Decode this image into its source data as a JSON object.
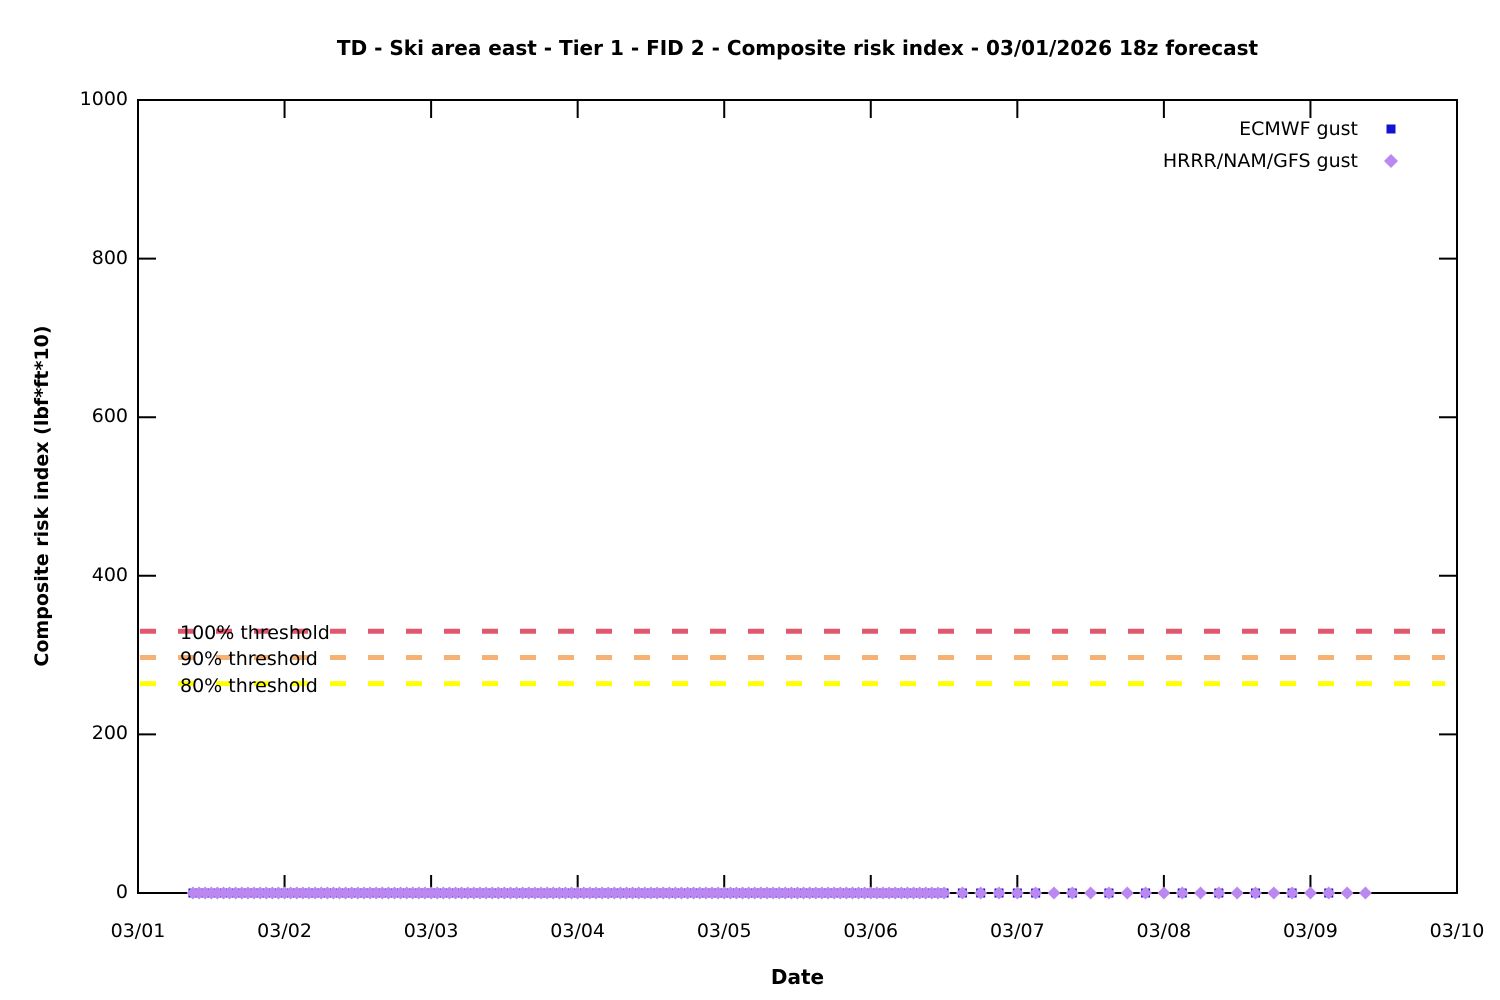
{
  "chart": {
    "title": "TD - Ski area east - Tier 1 - FID 2 - Composite risk index - 03/01/2026 18z forecast",
    "xlabel": "Date",
    "ylabel": "Composite risk index (lbf*ft*10)"
  },
  "chart_data": {
    "type": "scatter",
    "title": "TD - Ski area east - Tier 1 - FID 2 - Composite risk index - 03/01/2026 18z forecast",
    "xlabel": "Date",
    "ylabel": "Composite risk index (lbf*ft*10)",
    "x_tick_labels": [
      "03/01",
      "03/02",
      "03/03",
      "03/04",
      "03/05",
      "03/06",
      "03/07",
      "03/08",
      "03/09",
      "03/10"
    ],
    "x_range_days": [
      0,
      9
    ],
    "ylim": [
      0,
      1000
    ],
    "y_ticks": [
      0,
      200,
      400,
      600,
      800,
      1000
    ],
    "grid": false,
    "legend_position": "top-right-inside",
    "axis_color": "#000000",
    "series": [
      {
        "name": "ECMWF gust",
        "marker": "square",
        "color": "#1212cf",
        "marker_size": 9,
        "note": "all plotted values are approximately 0; hours counted from 03/01 00z",
        "segments": [
          {
            "start_hours": 9,
            "end_hours": 131,
            "step_hours": 1,
            "value": 0
          },
          {
            "start_hours": 132,
            "end_hours": 147,
            "step_hours": 3,
            "value": 0
          },
          {
            "start_hours": 153,
            "end_hours": 195,
            "step_hours": 6,
            "value": 0
          }
        ]
      },
      {
        "name": "HRRR/NAM/GFS gust",
        "marker": "diamond",
        "color": "#bb87f0",
        "marker_size": 13,
        "note": "all plotted values are approximately 0; hours counted from 03/01 00z",
        "segments": [
          {
            "start_hours": 9,
            "end_hours": 131,
            "step_hours": 1,
            "value": 0
          },
          {
            "start_hours": 132,
            "end_hours": 201,
            "step_hours": 3,
            "value": 0
          }
        ]
      }
    ],
    "thresholds": [
      {
        "label": "100% threshold",
        "value": 330,
        "color": "#e0586e"
      },
      {
        "label": "90% threshold",
        "value": 297,
        "color": "#f6b275"
      },
      {
        "label": "80% threshold",
        "value": 264,
        "color": "#ffff00"
      }
    ]
  }
}
